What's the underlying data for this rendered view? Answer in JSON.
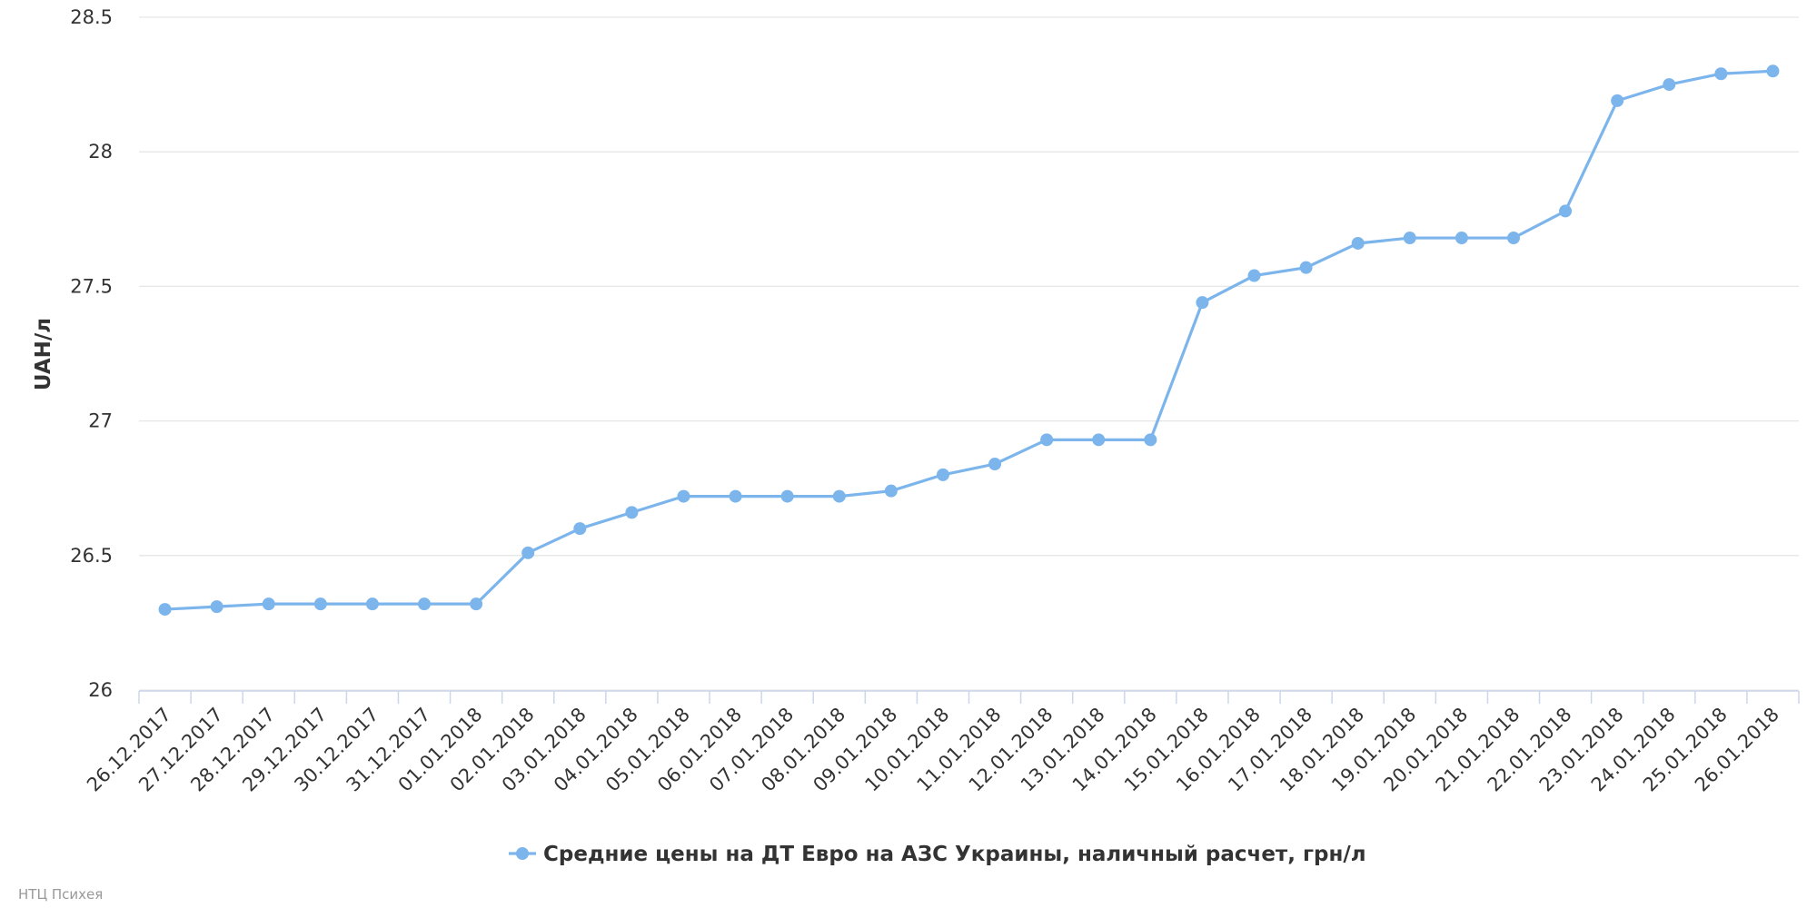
{
  "chart_data": {
    "type": "line",
    "y_axis_label": "UAH/л",
    "categories": [
      "26.12.2017",
      "27.12.2017",
      "28.12.2017",
      "29.12.2017",
      "30.12.2017",
      "31.12.2017",
      "01.01.2018",
      "02.01.2018",
      "03.01.2018",
      "04.01.2018",
      "05.01.2018",
      "06.01.2018",
      "07.01.2018",
      "08.01.2018",
      "09.01.2018",
      "10.01.2018",
      "11.01.2018",
      "12.01.2018",
      "13.01.2018",
      "14.01.2018",
      "15.01.2018",
      "16.01.2018",
      "17.01.2018",
      "18.01.2018",
      "19.01.2018",
      "20.01.2018",
      "21.01.2018",
      "22.01.2018",
      "23.01.2018",
      "24.01.2018",
      "25.01.2018",
      "26.01.2018"
    ],
    "series": [
      {
        "name": "Средние цены на ДТ Евро на АЗС Украины, наличный расчет, грн/л",
        "color": "#7cb5ec",
        "values": [
          26.3,
          26.31,
          26.32,
          26.32,
          26.32,
          26.32,
          26.32,
          26.51,
          26.6,
          26.66,
          26.72,
          26.72,
          26.72,
          26.72,
          26.74,
          26.8,
          26.84,
          26.93,
          26.93,
          26.93,
          27.44,
          27.54,
          27.57,
          27.66,
          27.68,
          27.68,
          27.68,
          27.78,
          28.19,
          28.25,
          28.29,
          28.3
        ]
      }
    ],
    "ylim": [
      26,
      28.5
    ],
    "yticks": [
      26,
      26.5,
      27,
      27.5,
      28,
      28.5
    ],
    "grid": true,
    "credits": "НТЦ Психея"
  }
}
